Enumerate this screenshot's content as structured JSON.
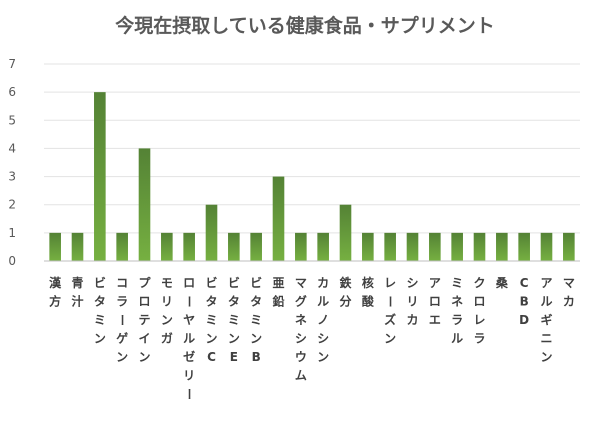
{
  "chart_data": {
    "type": "bar",
    "title": "今現在摂取している健康食品・サプリメント",
    "xlabel": "",
    "ylabel": "",
    "ylim": [
      0,
      7
    ],
    "yticks": [
      0,
      1,
      2,
      3,
      4,
      5,
      6,
      7
    ],
    "grid": true,
    "legend": "none",
    "bar_color": "#76b041",
    "bar_color_dark": "#548235",
    "categories": [
      "漢方",
      "青汁",
      "ビタミン",
      "コラーゲン",
      "プロテイン",
      "モリンガ",
      "ローヤルゼリー",
      "ビタミンC",
      "ビタミンE",
      "ビタミンB",
      "亜鉛",
      "マグネシウム",
      "カルノシン",
      "鉄分",
      "核酸",
      "レーズン",
      "シリカ",
      "アロエ",
      "ミネラル",
      "クロレラ",
      "桑",
      "CBD",
      "アルギニン",
      "マカ"
    ],
    "values": [
      1,
      1,
      6,
      1,
      4,
      1,
      1,
      2,
      1,
      1,
      3,
      1,
      1,
      2,
      1,
      1,
      1,
      1,
      1,
      1,
      1,
      1,
      1,
      1
    ]
  }
}
